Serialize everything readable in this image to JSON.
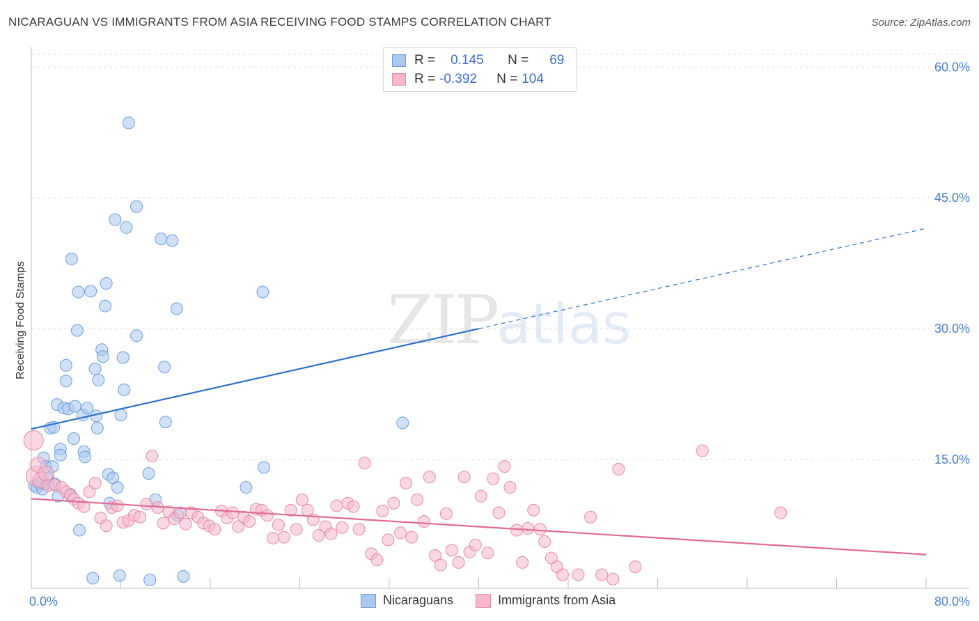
{
  "title": "NICARAGUAN VS IMMIGRANTS FROM ASIA RECEIVING FOOD STAMPS CORRELATION CHART",
  "source": "Source: ZipAtlas.com",
  "watermark": {
    "zip": "ZIP",
    "atlas": "atlas"
  },
  "legend": {
    "rows": [
      {
        "r_label": "R =",
        "r_value": "0.145",
        "n_label": "N =",
        "n_value": "69"
      },
      {
        "r_label": "R =",
        "r_value": "-0.392",
        "n_label": "N =",
        "n_value": "104"
      }
    ]
  },
  "bottom_legend": [
    "Nicaraguans",
    "Immigrants from Asia"
  ],
  "colors": {
    "blue_fill": "#aac8f0",
    "blue_stroke": "#6c9ee0",
    "blue_line": "#2f6fcf",
    "pink_fill": "#f5b8cc",
    "pink_stroke": "#e88aa8",
    "pink_line": "#e06a93",
    "axis_text": "#4a7fd4",
    "grid": "#dcdcdc"
  },
  "chart_data": {
    "type": "scatter",
    "title": "NICARAGUAN VS IMMIGRANTS FROM ASIA RECEIVING FOOD STAMPS CORRELATION CHART",
    "xlabel": "",
    "ylabel": "Receiving Food Stamps",
    "xlim": [
      0,
      80
    ],
    "ylim": [
      0,
      60
    ],
    "x_tick_labels": [
      "0.0%",
      "80.0%"
    ],
    "y_ticks": [
      15,
      30,
      45,
      60
    ],
    "y_tick_labels": [
      "15.0%",
      "30.0%",
      "45.0%",
      "60.0%"
    ],
    "series": [
      {
        "name": "Nicaraguans",
        "trend": {
          "x0": 0,
          "y0": 18.5,
          "x1": 40,
          "y1": 30.0,
          "dashed_to_x": 80,
          "dashed_to_y": 41.5
        },
        "points": [
          [
            0.3,
            12.0
          ],
          [
            0.5,
            11.8
          ],
          [
            0.7,
            12.3
          ],
          [
            0.9,
            12.4
          ],
          [
            1.0,
            11.6
          ],
          [
            1.1,
            15.2
          ],
          [
            1.2,
            12.2
          ],
          [
            1.3,
            14.2
          ],
          [
            1.5,
            12.8
          ],
          [
            1.7,
            18.6
          ],
          [
            1.9,
            14.2
          ],
          [
            2.0,
            18.7
          ],
          [
            2.1,
            12.2
          ],
          [
            2.3,
            21.3
          ],
          [
            2.4,
            10.8
          ],
          [
            2.6,
            16.2
          ],
          [
            2.6,
            15.5
          ],
          [
            2.9,
            20.9
          ],
          [
            3.1,
            25.8
          ],
          [
            3.1,
            24.0
          ],
          [
            3.3,
            20.8
          ],
          [
            3.5,
            11.0
          ],
          [
            3.6,
            38.0
          ],
          [
            3.8,
            17.4
          ],
          [
            3.9,
            21.1
          ],
          [
            4.1,
            29.8
          ],
          [
            4.2,
            34.2
          ],
          [
            4.3,
            6.9
          ],
          [
            4.6,
            20.1
          ],
          [
            4.7,
            15.9
          ],
          [
            4.8,
            15.3
          ],
          [
            5.0,
            20.9
          ],
          [
            5.3,
            34.3
          ],
          [
            5.5,
            1.4
          ],
          [
            5.7,
            25.4
          ],
          [
            5.8,
            20.0
          ],
          [
            5.9,
            18.6
          ],
          [
            6.0,
            24.1
          ],
          [
            6.3,
            27.6
          ],
          [
            6.4,
            26.8
          ],
          [
            6.6,
            32.6
          ],
          [
            6.7,
            35.2
          ],
          [
            6.9,
            13.3
          ],
          [
            7.0,
            10.0
          ],
          [
            7.3,
            12.9
          ],
          [
            7.5,
            42.5
          ],
          [
            7.7,
            11.8
          ],
          [
            7.9,
            1.7
          ],
          [
            8.0,
            20.1
          ],
          [
            8.2,
            26.7
          ],
          [
            8.3,
            23.0
          ],
          [
            8.5,
            41.6
          ],
          [
            8.7,
            53.6
          ],
          [
            9.4,
            44.0
          ],
          [
            9.4,
            29.2
          ],
          [
            10.5,
            13.4
          ],
          [
            10.6,
            1.2
          ],
          [
            11.1,
            10.4
          ],
          [
            11.6,
            40.3
          ],
          [
            11.9,
            25.6
          ],
          [
            12.0,
            19.3
          ],
          [
            12.6,
            40.1
          ],
          [
            13.0,
            32.3
          ],
          [
            13.1,
            8.6
          ],
          [
            13.6,
            1.6
          ],
          [
            19.2,
            11.8
          ],
          [
            20.7,
            34.2
          ],
          [
            20.8,
            14.1
          ],
          [
            33.2,
            19.2
          ]
        ]
      },
      {
        "name": "Immigrants from Asia",
        "trend": {
          "x0": 0,
          "y0": 10.5,
          "x1": 80,
          "y1": 4.1
        },
        "points": [
          [
            0.2,
            17.2
          ],
          [
            0.4,
            13.1
          ],
          [
            0.6,
            14.4
          ],
          [
            0.8,
            12.6
          ],
          [
            1.3,
            13.4
          ],
          [
            1.5,
            12.0
          ],
          [
            2.1,
            12.1
          ],
          [
            2.7,
            11.8
          ],
          [
            3.1,
            11.3
          ],
          [
            3.5,
            10.9
          ],
          [
            3.8,
            10.5
          ],
          [
            4.2,
            10.0
          ],
          [
            4.7,
            9.6
          ],
          [
            5.2,
            11.3
          ],
          [
            5.7,
            12.3
          ],
          [
            6.2,
            8.3
          ],
          [
            6.7,
            7.4
          ],
          [
            7.2,
            9.5
          ],
          [
            7.7,
            9.7
          ],
          [
            8.2,
            7.8
          ],
          [
            8.7,
            8.0
          ],
          [
            9.2,
            8.6
          ],
          [
            9.7,
            8.4
          ],
          [
            10.3,
            9.9
          ],
          [
            10.8,
            15.4
          ],
          [
            11.3,
            9.5
          ],
          [
            11.8,
            7.7
          ],
          [
            12.3,
            9.0
          ],
          [
            12.8,
            8.2
          ],
          [
            13.3,
            8.9
          ],
          [
            13.8,
            7.6
          ],
          [
            14.3,
            8.9
          ],
          [
            14.9,
            8.4
          ],
          [
            15.4,
            7.7
          ],
          [
            15.9,
            7.4
          ],
          [
            16.4,
            7.0
          ],
          [
            17.0,
            9.1
          ],
          [
            17.5,
            8.3
          ],
          [
            18.0,
            8.9
          ],
          [
            18.5,
            7.3
          ],
          [
            19.0,
            8.4
          ],
          [
            19.5,
            7.9
          ],
          [
            20.1,
            9.3
          ],
          [
            20.6,
            9.2
          ],
          [
            21.1,
            8.6
          ],
          [
            21.6,
            6.0
          ],
          [
            22.1,
            7.5
          ],
          [
            22.6,
            6.1
          ],
          [
            23.2,
            9.2
          ],
          [
            23.7,
            7.0
          ],
          [
            24.2,
            10.4
          ],
          [
            24.7,
            9.2
          ],
          [
            25.2,
            8.1
          ],
          [
            25.7,
            6.3
          ],
          [
            26.3,
            7.3
          ],
          [
            26.8,
            6.5
          ],
          [
            27.3,
            9.7
          ],
          [
            27.8,
            7.2
          ],
          [
            28.3,
            10.0
          ],
          [
            28.8,
            9.6
          ],
          [
            29.3,
            7.0
          ],
          [
            29.8,
            14.6
          ],
          [
            30.4,
            4.2
          ],
          [
            30.9,
            3.5
          ],
          [
            31.4,
            9.1
          ],
          [
            31.9,
            5.8
          ],
          [
            32.4,
            10.0
          ],
          [
            33.0,
            6.6
          ],
          [
            33.5,
            12.3
          ],
          [
            34.0,
            6.1
          ],
          [
            34.5,
            10.4
          ],
          [
            35.1,
            7.9
          ],
          [
            35.6,
            13.0
          ],
          [
            36.1,
            4.0
          ],
          [
            36.6,
            2.9
          ],
          [
            37.1,
            8.8
          ],
          [
            37.6,
            4.6
          ],
          [
            38.2,
            3.2
          ],
          [
            38.7,
            13.0
          ],
          [
            39.2,
            4.4
          ],
          [
            39.7,
            5.2
          ],
          [
            40.2,
            10.8
          ],
          [
            40.8,
            4.3
          ],
          [
            41.3,
            12.8
          ],
          [
            41.8,
            8.9
          ],
          [
            42.3,
            14.2
          ],
          [
            42.8,
            11.8
          ],
          [
            43.4,
            6.9
          ],
          [
            43.9,
            3.2
          ],
          [
            44.4,
            7.1
          ],
          [
            44.9,
            9.2
          ],
          [
            45.5,
            7.0
          ],
          [
            45.9,
            5.6
          ],
          [
            46.5,
            3.7
          ],
          [
            47.0,
            2.7
          ],
          [
            47.5,
            1.8
          ],
          [
            48.9,
            1.8
          ],
          [
            50.0,
            8.4
          ],
          [
            51.0,
            1.8
          ],
          [
            52.0,
            1.3
          ],
          [
            52.5,
            13.9
          ],
          [
            54.0,
            2.7
          ],
          [
            60.0,
            16.0
          ],
          [
            67.0,
            8.9
          ]
        ]
      }
    ]
  }
}
